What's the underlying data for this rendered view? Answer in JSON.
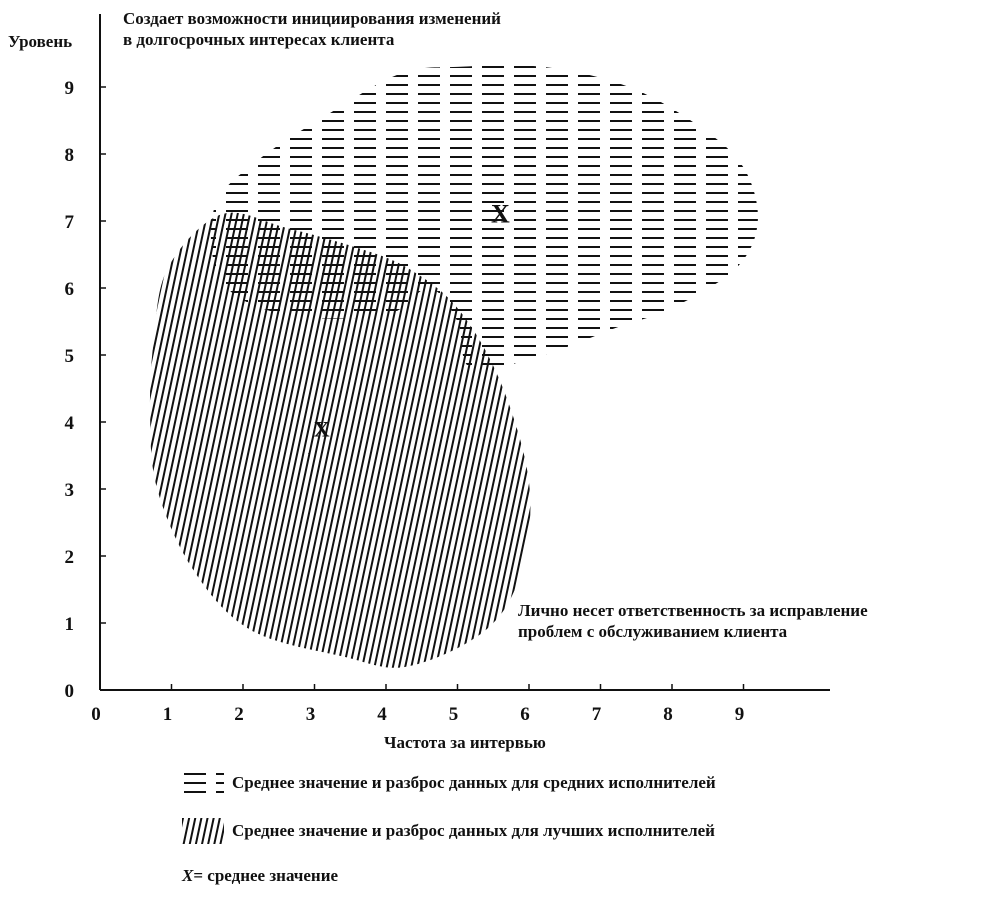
{
  "chart_data": {
    "type": "scatter",
    "title": "",
    "xlabel": "Частота за интервью",
    "ylabel": "Уровень",
    "xlim": [
      0,
      10
    ],
    "ylim": [
      0,
      9.5
    ],
    "x_ticks": [
      0,
      1,
      2,
      3,
      4,
      5,
      6,
      7,
      8,
      9
    ],
    "y_ticks": [
      0,
      1,
      2,
      3,
      4,
      5,
      6,
      7,
      8,
      9
    ],
    "grid": false,
    "legend_position": "bottom",
    "annotations": {
      "top": [
        "Создает возможности инициирования изменений",
        "в долгосрочных интересах клиента"
      ],
      "bottom_right": [
        "Лично несет ответственность за исправление",
        "проблем с обслуживанием клиента"
      ]
    },
    "series": [
      {
        "name": "Среднее значение и разброс данных для средних исполнителей",
        "hatch": "horizontal-dashes",
        "mean": {
          "x": 5.6,
          "y": 7.1,
          "marker": "X"
        },
        "extent": [
          [
            4.2,
            9.2
          ],
          [
            5.0,
            9.3
          ],
          [
            6.2,
            9.3
          ],
          [
            7.4,
            9.0
          ],
          [
            8.4,
            8.4
          ],
          [
            9.0,
            7.8
          ],
          [
            9.2,
            7.0
          ],
          [
            8.9,
            6.3
          ],
          [
            8.0,
            5.7
          ],
          [
            7.2,
            5.4
          ],
          [
            6.2,
            5.0
          ],
          [
            5.2,
            4.8
          ],
          [
            5.0,
            5.5
          ],
          [
            4.6,
            6.0
          ],
          [
            4.0,
            5.6
          ],
          [
            2.6,
            5.6
          ],
          [
            1.7,
            6.1
          ],
          [
            1.6,
            7.2
          ],
          [
            2.2,
            7.9
          ],
          [
            3.2,
            8.6
          ]
        ]
      },
      {
        "name": "Среднее значение и разброс данных для лучших исполнителей",
        "hatch": "vertical-lines",
        "mean": {
          "x": 3.1,
          "y": 3.9,
          "marker": "X"
        },
        "extent": [
          [
            1.7,
            7.1
          ],
          [
            2.6,
            6.9
          ],
          [
            3.6,
            6.6
          ],
          [
            4.3,
            6.3
          ],
          [
            5.0,
            5.7
          ],
          [
            5.6,
            4.6
          ],
          [
            6.0,
            3.1
          ],
          [
            5.9,
            1.8
          ],
          [
            5.4,
            0.9
          ],
          [
            4.3,
            0.35
          ],
          [
            3.4,
            0.5
          ],
          [
            2.1,
            0.9
          ],
          [
            1.3,
            1.8
          ],
          [
            0.8,
            3.0
          ],
          [
            0.7,
            4.1
          ],
          [
            0.75,
            5.2
          ],
          [
            0.95,
            6.3
          ]
        ]
      }
    ],
    "mean_note": {
      "symbol": "X",
      "text": "= среднее значение"
    }
  }
}
